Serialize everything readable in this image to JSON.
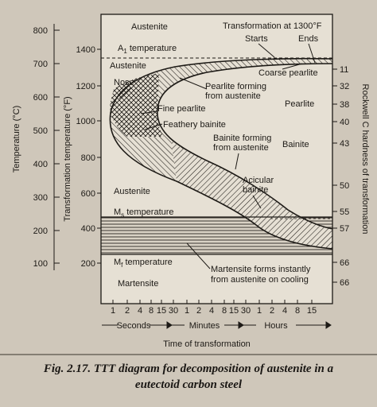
{
  "frame_text": {
    "celsius_axis_title": "Temperature (°C)",
    "fahrenheit_axis_title": "Transformation temperature (°F)",
    "rockwell_axis_title": "Rockwell C hardness of transformation",
    "x_axis_title": "Time of transformation",
    "celsius_ticks": [
      "800",
      "700",
      "600",
      "500",
      "400",
      "300",
      "200",
      "100"
    ],
    "fahrenheit_ticks": [
      "1400",
      "1200",
      "1000",
      "800",
      "600",
      "400",
      "200"
    ],
    "rockwell_ticks": [
      "11",
      "32",
      "38",
      "40",
      "43",
      "50",
      "55",
      "57",
      "66",
      "66"
    ],
    "time_ticks": [
      "1",
      "2",
      "4",
      "8",
      "15",
      "30",
      "1",
      "2",
      "4",
      "8",
      "15",
      "30",
      "1",
      "2",
      "4",
      "8",
      "15"
    ],
    "time_group_labels": [
      "Seconds",
      "Minutes",
      "Hours"
    ]
  },
  "annotations": {
    "austenite_top": "Austenite",
    "transformation_title": "Transformation at 1300°F",
    "starts": "Starts",
    "ends": "Ends",
    "a1_prefix": "A",
    "a1_sub": "1",
    "a1_suffix": " temperature",
    "austenite_a1": "Austenite",
    "coarse_pearlite": "Coarse pearlite",
    "nose": "Nose",
    "pearlite_forming_1": "Pearlite forming",
    "pearlite_forming_2": "from austenite",
    "pearlite": "Pearlite",
    "fine_pearlite": "Fine pearlite",
    "feathery_bainite": "Feathery bainite",
    "bainite_forming_1": "Bainite forming",
    "bainite_forming_2": "from austenite",
    "bainite": "Bainite",
    "acicular_1": "Acicular",
    "acicular_2": "bainite",
    "austenite_mid": "Austenite",
    "ms_prefix": "M",
    "ms_sub": "s",
    "ms_suffix": " temperature",
    "mf_prefix": "M",
    "mf_sub": "f",
    "mf_suffix": " temperature",
    "martensite": "Martensite",
    "martensite_forms_1": "Martensite forms instantly",
    "martensite_forms_2": "from austenite on cooling"
  },
  "caption": {
    "line1": "Fig. 2.17. TTT diagram for decomposition of austenite in a",
    "line2": "eutectoid carbon steel"
  }
}
